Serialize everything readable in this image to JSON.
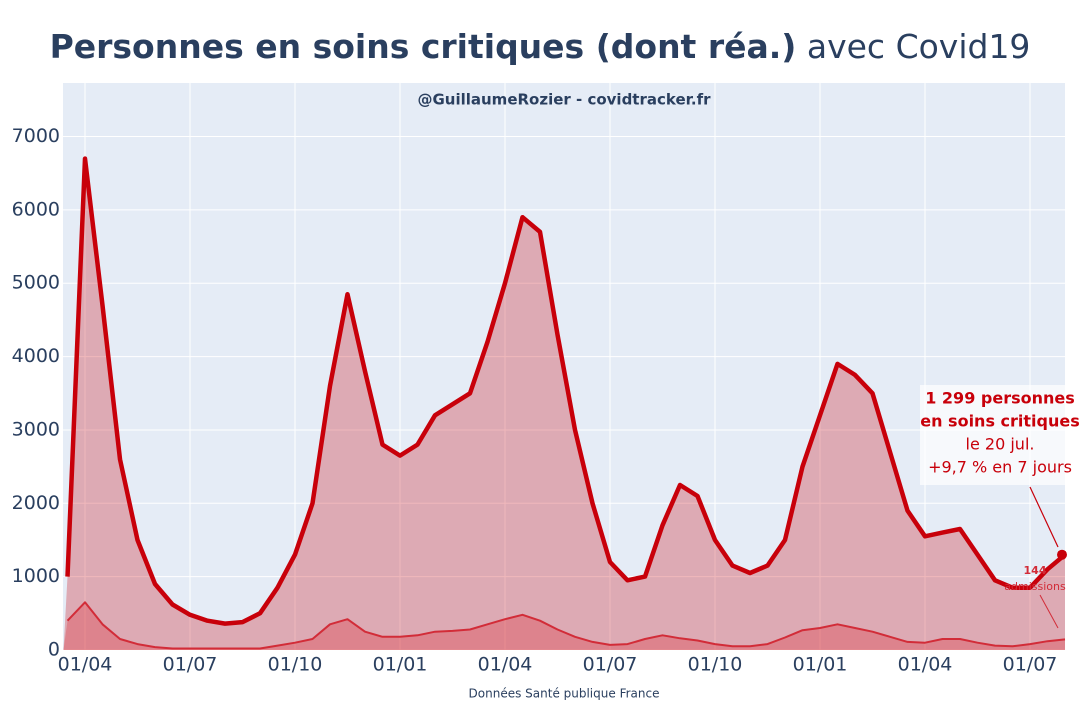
{
  "chart_data": {
    "type": "line",
    "title": "Personnes en soins critiques (dont réa.)",
    "title_suffix": "avec Covid19",
    "subtitle": "@GuillaumeRozier - covidtracker.fr",
    "source": "Données Santé publique France",
    "categories": [
      null,
      "01/04",
      null,
      null,
      null,
      null,
      null,
      "01/07",
      null,
      null,
      null,
      null,
      null,
      "01/10",
      null,
      null,
      null,
      null,
      null,
      "01/01",
      null,
      null,
      null,
      null,
      null,
      "01/04",
      null,
      null,
      null,
      null,
      null,
      "01/07",
      null,
      null,
      null,
      null,
      null,
      "01/10",
      null,
      null,
      null,
      null,
      null,
      "01/01",
      null,
      null,
      null,
      null,
      null,
      "01/04",
      null,
      null,
      null,
      null,
      null,
      "01/07",
      null,
      null
    ],
    "series": [
      {
        "name": "soins critiques",
        "color": "#c8000a",
        "fill": "rgba(200,0,10,0.28)",
        "values": [
          1000,
          6700,
          4700,
          2600,
          1500,
          900,
          620,
          480,
          400,
          360,
          380,
          500,
          850,
          1300,
          2000,
          3600,
          4850,
          3800,
          2800,
          2650,
          2800,
          3200,
          3350,
          3500,
          4200,
          5000,
          5900,
          5700,
          4300,
          3000,
          2000,
          1200,
          950,
          1000,
          1700,
          2250,
          2100,
          1500,
          1150,
          1050,
          1150,
          1500,
          2500,
          3200,
          3900,
          3750,
          3500,
          2700,
          1900,
          1550,
          1600,
          1650,
          1300,
          950,
          850,
          850,
          1100,
          1299
        ]
      },
      {
        "name": "admissions",
        "color": "#d22c38",
        "fill": "rgba(220,60,70,0.35)",
        "values": [
          400,
          650,
          350,
          150,
          80,
          40,
          20,
          20,
          20,
          20,
          20,
          20,
          60,
          100,
          150,
          350,
          420,
          250,
          180,
          180,
          200,
          250,
          260,
          280,
          350,
          420,
          480,
          400,
          280,
          180,
          110,
          70,
          80,
          150,
          200,
          160,
          130,
          80,
          50,
          50,
          80,
          170,
          270,
          300,
          350,
          300,
          250,
          180,
          110,
          100,
          150,
          150,
          100,
          60,
          50,
          80,
          120,
          144
        ]
      }
    ],
    "annotations": [
      "1 299 personnes",
      "en soins critiques",
      "le 20 jul.",
      "+9,7 % en 7 jours"
    ],
    "annotations2": [
      "144",
      "admissions"
    ],
    "ylim": [
      0,
      7730
    ],
    "yticks": [
      0,
      1000,
      2000,
      3000,
      4000,
      5000,
      6000,
      7000
    ],
    "grid": true
  }
}
